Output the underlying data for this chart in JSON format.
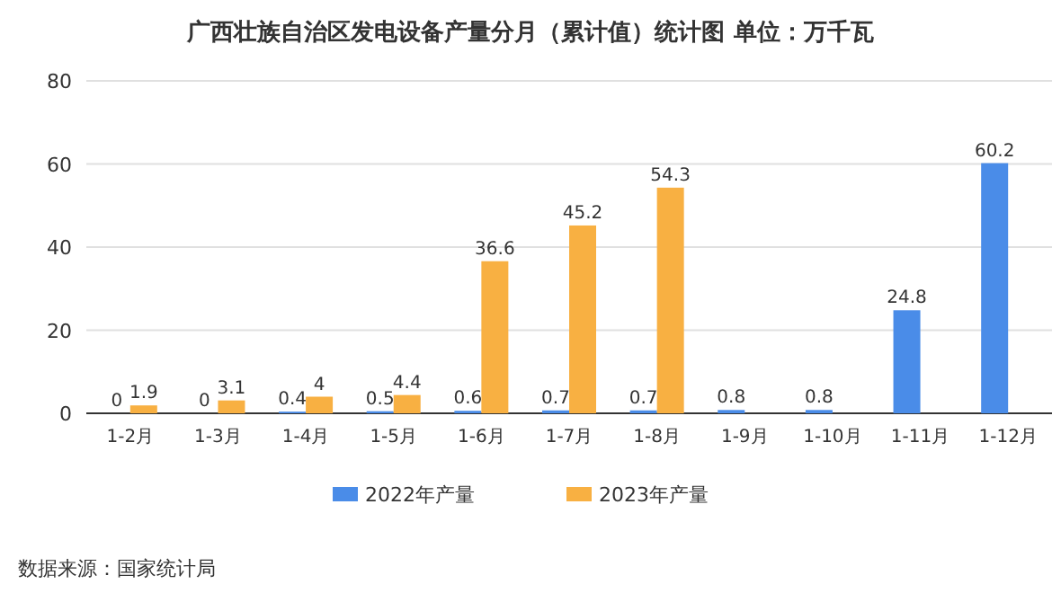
{
  "chart_data": {
    "type": "bar",
    "title": "广西壮族自治区发电设备产量分月（累计值）统计图 单位：万千瓦",
    "categories": [
      "1-2月",
      "1-3月",
      "1-4月",
      "1-5月",
      "1-6月",
      "1-7月",
      "1-8月",
      "1-9月",
      "1-10月",
      "1-11月",
      "1-12月"
    ],
    "series": [
      {
        "name": "2022年产量",
        "color": "#4a8ce8",
        "values": [
          0,
          0,
          0.4,
          0.5,
          0.6,
          0.7,
          0.7,
          0.8,
          0.8,
          24.8,
          60.2
        ]
      },
      {
        "name": "2023年产量",
        "color": "#f8b042",
        "values": [
          1.9,
          3.1,
          4,
          4.4,
          36.6,
          45.2,
          54.3,
          null,
          null,
          null,
          null
        ]
      }
    ],
    "ylim": [
      0,
      80
    ],
    "yticks": [
      0,
      20,
      40,
      60,
      80
    ],
    "grid": "y",
    "legend": "bottom",
    "data_labels": true,
    "annotations": [
      "数据来源：国家统计局"
    ]
  }
}
